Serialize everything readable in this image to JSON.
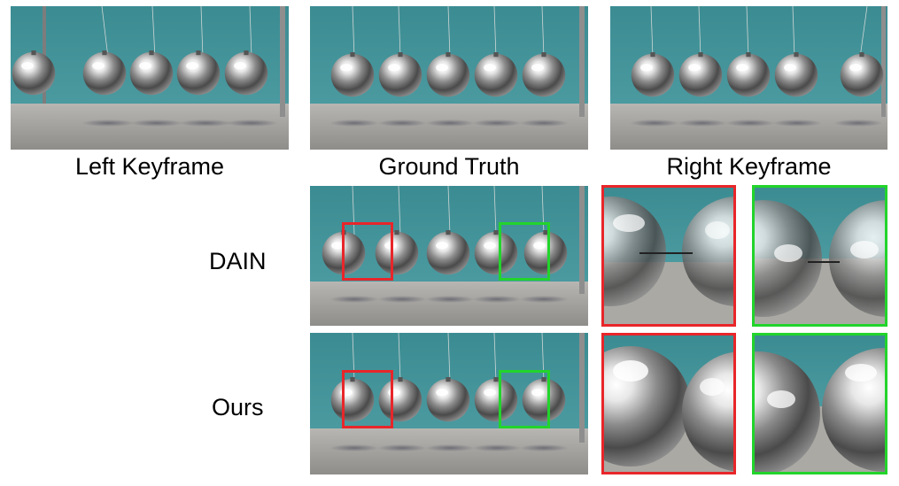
{
  "captions": {
    "left_keyframe": "Left Keyframe",
    "ground_truth": "Ground Truth",
    "right_keyframe": "Right Keyframe"
  },
  "rows": {
    "dain": "DAIN",
    "ours": "Ours"
  },
  "colors": {
    "wall": "#3f8f94",
    "floor": "#a6a4a0",
    "highlight_red": "#e8262a",
    "highlight_green": "#22d42b"
  }
}
